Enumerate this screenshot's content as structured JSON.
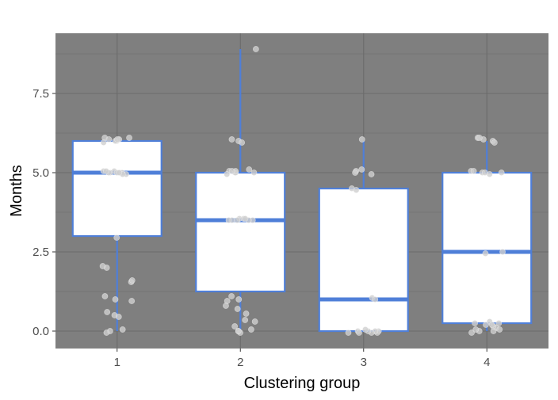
{
  "chart_data": {
    "type": "boxplot",
    "xlabel": "Clustering group",
    "ylabel": "Months",
    "categories": [
      "1",
      "2",
      "3",
      "4"
    ],
    "ylim": [
      -0.55,
      9.4
    ],
    "yticks": [
      0.0,
      2.5,
      5.0,
      7.5
    ],
    "ytick_labels": [
      "0.0",
      "2.5",
      "5.0",
      "7.5"
    ],
    "grid": true,
    "legend": "none",
    "boxes": [
      {
        "category": "1",
        "whisker_low": 0.0,
        "q1": 3.0,
        "median": 5.0,
        "q3": 6.0,
        "whisker_high": 6.0
      },
      {
        "category": "2",
        "whisker_low": 0.0,
        "q1": 1.25,
        "median": 3.5,
        "q3": 5.0,
        "whisker_high": 8.9
      },
      {
        "category": "3",
        "whisker_low": 0.0,
        "q1": 0.0,
        "median": 1.0,
        "q3": 4.5,
        "whisker_high": 6.0
      },
      {
        "category": "4",
        "whisker_low": 0.0,
        "q1": 0.25,
        "median": 2.5,
        "q3": 5.0,
        "whisker_high": 6.0
      }
    ],
    "points": [
      {
        "group": 0,
        "y": [
          6.0,
          6.05,
          6.1,
          6.05,
          6.0,
          6.05,
          5.95,
          6.1,
          5.0,
          5.05,
          5.0,
          4.95,
          5.0,
          5.05,
          5.0,
          5.0,
          4.95,
          5.05,
          5.0,
          2.95,
          2.0,
          2.05,
          1.55,
          1.6,
          1.1,
          1.0,
          0.95,
          0.6,
          0.5,
          0.45,
          0.05,
          0.0,
          -0.05
        ]
      },
      {
        "group": 1,
        "y": [
          8.9,
          6.0,
          6.05,
          5.95,
          5.0,
          5.05,
          5.1,
          5.0,
          5.05,
          4.95,
          5.0,
          5.05,
          3.5,
          3.55,
          3.5,
          3.55,
          3.5,
          3.5,
          3.55,
          3.5,
          1.1,
          1.0,
          0.95,
          0.8,
          0.7,
          0.55,
          0.35,
          0.3,
          0.15,
          0.0,
          -0.05,
          0.0,
          0.05
        ]
      },
      {
        "group": 2,
        "y": [
          6.05,
          5.1,
          5.05,
          5.0,
          4.95,
          4.5,
          4.45,
          1.05,
          1.0,
          0.0,
          -0.05,
          0.0,
          -0.05,
          0.0,
          0.05,
          -0.05,
          0.0,
          -0.05
        ]
      },
      {
        "group": 3,
        "y": [
          6.1,
          6.05,
          6.0,
          5.95,
          6.1,
          5.0,
          5.05,
          5.0,
          4.95,
          5.0,
          5.05,
          2.5,
          2.45,
          0.25,
          0.3,
          0.2,
          0.25,
          0.1,
          0.05,
          0.0,
          -0.05,
          0.05,
          0.0,
          0.15,
          0.2
        ]
      }
    ],
    "colors": {
      "panel_bg": "#7f7f7f",
      "grid": "#6b6b6b",
      "box_edge": "#4f7fd8",
      "box_fill": "#ffffff",
      "point": "#d0d0d0"
    }
  }
}
